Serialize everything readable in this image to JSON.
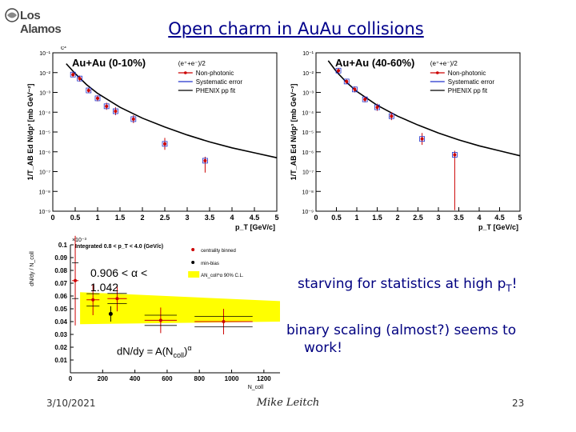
{
  "slide": {
    "logo_text": "Los Alamos",
    "title": "Open charm in AuAu collisions",
    "note_stats_prefix": "starving for statistics at high p",
    "note_stats_sub": "T",
    "note_stats_suffix": "!",
    "note_scaling_line1": "binary scaling (almost?) seems to",
    "note_scaling_line2": "work!",
    "alpha_range_line1": "0.906 < α <",
    "alpha_range_line2": "1.042",
    "fit_formula_main": "dN/dy = A(N",
    "fit_formula_sub": "coll",
    "fit_formula_close": ")",
    "fit_formula_sup": "α",
    "footer_date": "3/10/2021",
    "footer_author": "Mike Leitch",
    "footer_page": "23"
  },
  "colors": {
    "title": "#00008b",
    "data": "#cc0000",
    "syst": "#2233cc",
    "fit": "#000000",
    "band": "#ffff00"
  },
  "chart_data": [
    {
      "type": "scatter",
      "title": "Au+Au (0-10%)",
      "ylabel": "1/T_AB Ed N/dp³ [mb GeV⁻²]",
      "xlabel": "p_T [GeV/c]",
      "x_ticks": [
        "0",
        "0.5",
        "1",
        "1.5",
        "2",
        "2.5",
        "3",
        "3.5",
        "4",
        "4.5",
        "5"
      ],
      "y_ticks": [
        "10⁻⁹",
        "10⁻⁸",
        "10⁻⁷",
        "10⁻⁶",
        "10⁻⁵",
        "10⁻⁴",
        "10⁻³",
        "10⁻²",
        "10⁻¹"
      ],
      "y_unit_label": "c³",
      "xlim": [
        0,
        5
      ],
      "ylim_log10": [
        -9,
        -1
      ],
      "legend": {
        "header": "(e⁺+e⁻)/2",
        "entries": [
          "Non-photonic",
          "Systematic error",
          "PHENIX pp fit"
        ]
      },
      "series": [
        {
          "name": "Non-photonic",
          "x": [
            0.45,
            0.6,
            0.8,
            1.0,
            1.2,
            1.4,
            1.8,
            2.5,
            3.4
          ],
          "log10_y": [
            -2.1,
            -2.3,
            -2.9,
            -3.3,
            -3.7,
            -3.95,
            -4.35,
            -5.6,
            -6.45
          ],
          "log10_err_lo": [
            0.12,
            0.15,
            0.12,
            0.15,
            0.18,
            0.2,
            0.2,
            0.3,
            0.6
          ],
          "log10_err_hi": [
            0.12,
            0.15,
            0.12,
            0.15,
            0.18,
            0.2,
            0.2,
            0.3,
            0.2
          ]
        }
      ],
      "fit_curve": {
        "name": "PHENIX pp fit",
        "x": [
          0.3,
          0.5,
          0.75,
          1.0,
          1.5,
          2.0,
          2.5,
          3.0,
          3.5,
          4.0,
          4.5,
          5.0
        ],
        "log10_y": [
          -1.55,
          -2.05,
          -2.6,
          -3.05,
          -3.75,
          -4.3,
          -4.75,
          -5.15,
          -5.5,
          -5.8,
          -6.05,
          -6.3
        ]
      }
    },
    {
      "type": "scatter",
      "title": "Au+Au (40-60%)",
      "ylabel": "1/T_AB Ed N/dp³ [mb GeV⁻²]",
      "xlabel": "p_T [GeV/c]",
      "x_ticks": [
        "0",
        "0.5",
        "1",
        "1.5",
        "2",
        "2.5",
        "3",
        "3.5",
        "4",
        "4.5",
        "5"
      ],
      "y_ticks": [
        "10⁻⁹",
        "10⁻⁸",
        "10⁻⁷",
        "10⁻⁶",
        "10⁻⁵",
        "10⁻⁴",
        "10⁻³",
        "10⁻²",
        "10⁻¹"
      ],
      "xlim": [
        0,
        5
      ],
      "ylim_log10": [
        -9,
        -1
      ],
      "legend": {
        "header": "(e⁺+e⁻)/2",
        "entries": [
          "Non-photonic",
          "Systematic error",
          "PHENIX pp fit"
        ]
      },
      "series": [
        {
          "name": "Non-photonic",
          "x": [
            0.55,
            0.75,
            0.95,
            1.2,
            1.5,
            1.85,
            2.6,
            3.4
          ],
          "log10_y": [
            -1.9,
            -2.45,
            -2.85,
            -3.35,
            -3.75,
            -4.2,
            -5.35,
            -6.15
          ],
          "log10_err_lo": [
            0.12,
            0.12,
            0.15,
            0.15,
            0.18,
            0.2,
            0.3,
            2.8
          ],
          "log10_err_hi": [
            0.12,
            0.12,
            0.15,
            0.15,
            0.18,
            0.2,
            0.3,
            0.2
          ]
        }
      ],
      "fit_curve": {
        "name": "PHENIX pp fit",
        "x": [
          0.3,
          0.5,
          0.75,
          1.0,
          1.5,
          2.0,
          2.5,
          3.0,
          3.5,
          4.0,
          4.5,
          5.0
        ],
        "log10_y": [
          -1.4,
          -1.95,
          -2.5,
          -2.95,
          -3.65,
          -4.2,
          -4.65,
          -5.05,
          -5.4,
          -5.7,
          -5.95,
          -6.2
        ]
      }
    },
    {
      "type": "scatter",
      "xlabel": "N_coll",
      "ylabel": "dN/dy / N_coll",
      "y_multiplier": "×10⁻³",
      "x_ticks": [
        "0",
        "200",
        "400",
        "600",
        "800",
        "1000",
        "1200"
      ],
      "y_ticks": [
        "0.01",
        "0.02",
        "0.03",
        "0.04",
        "0.05",
        "0.06",
        "0.07",
        "0.08",
        "0.09",
        "0.1"
      ],
      "xlim": [
        0,
        1300
      ],
      "ylim": [
        0,
        0.1
      ],
      "legend": {
        "header": "Integrated 0.8 < p_T < 4.0 (GeV/c)",
        "entries": [
          "centrality binned",
          "min-bias",
          "AN_coll^α 90% C.L."
        ]
      },
      "band": {
        "x": [
          60,
          1300
        ],
        "y_lo": [
          0.038,
          0.04
        ],
        "y_hi": [
          0.063,
          0.056
        ]
      },
      "series": [
        {
          "name": "centrality binned",
          "x": [
            30,
            140,
            290,
            560,
            950
          ],
          "y": [
            0.072,
            0.057,
            0.058,
            0.041,
            0.04
          ],
          "err": [
            0.035,
            0.012,
            0.01,
            0.01,
            0.01
          ],
          "xerr": [
            20,
            40,
            60,
            100,
            180
          ]
        },
        {
          "name": "min-bias",
          "x": [
            250
          ],
          "y": [
            0.046
          ],
          "err": [
            0.006
          ]
        }
      ]
    }
  ]
}
